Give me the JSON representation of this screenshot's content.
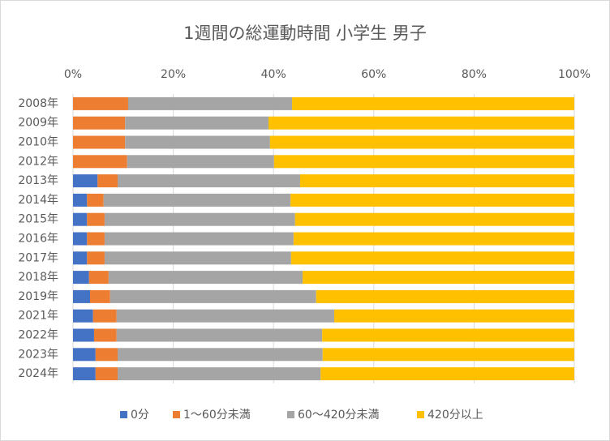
{
  "chart_data": {
    "type": "stacked-bar-horizontal",
    "title": "1週間の総運動時間 小学生 男子",
    "categories": [
      "2008年",
      "2009年",
      "2010年",
      "2012年",
      "2013年",
      "2014年",
      "2015年",
      "2016年",
      "2017年",
      "2018年",
      "2019年",
      "2021年",
      "2022年",
      "2023年",
      "2024年"
    ],
    "series": [
      {
        "name": "0分",
        "color": "#4472c4",
        "values": [
          0,
          0,
          0,
          0,
          4.9,
          2.8,
          2.8,
          2.8,
          2.8,
          3.2,
          3.4,
          4.0,
          4.2,
          4.5,
          4.5
        ]
      },
      {
        "name": "1～60分未満",
        "color": "#ed7d31",
        "values": [
          11.0,
          10.4,
          10.4,
          10.8,
          4.0,
          3.3,
          3.5,
          3.5,
          3.5,
          3.9,
          4.0,
          4.7,
          4.5,
          4.4,
          4.4
        ]
      },
      {
        "name": "60～420分未満",
        "color": "#a5a5a5",
        "values": [
          32.7,
          28.6,
          28.9,
          29.3,
          36.4,
          37.3,
          38.0,
          37.7,
          37.2,
          38.7,
          41.1,
          43.4,
          41.0,
          40.9,
          40.5
        ]
      },
      {
        "name": "420分以上",
        "color": "#ffc000",
        "values": [
          56.3,
          61.0,
          60.7,
          59.9,
          54.7,
          56.6,
          55.7,
          56.0,
          56.5,
          54.2,
          51.5,
          47.9,
          50.3,
          50.2,
          50.6
        ]
      }
    ],
    "xlim": [
      0,
      100
    ],
    "xticks": [
      {
        "value": 0,
        "label": "0%"
      },
      {
        "value": 20,
        "label": "20%"
      },
      {
        "value": 40,
        "label": "40%"
      },
      {
        "value": 60,
        "label": "60%"
      },
      {
        "value": 80,
        "label": "80%"
      },
      {
        "value": 100,
        "label": "100%"
      }
    ],
    "grid": true,
    "legend": "bottom"
  }
}
